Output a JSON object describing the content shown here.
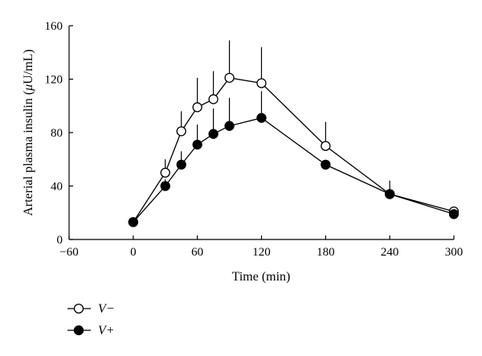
{
  "chart_data": {
    "type": "line",
    "xlabel": "Time (min)",
    "ylabel_main": "Arterial plasma insulin (",
    "ylabel_mu": "μ",
    "ylabel_unit": "U/mL)",
    "xlim": [
      -60,
      300
    ],
    "ylim": [
      0,
      160
    ],
    "x_ticks": [
      -60,
      0,
      60,
      120,
      180,
      240,
      300
    ],
    "y_ticks": [
      0,
      40,
      80,
      120,
      160
    ],
    "x_tick_labels": [
      "−60",
      "0",
      "60",
      "120",
      "180",
      "240",
      "300"
    ],
    "y_tick_labels": [
      "0",
      "40",
      "80",
      "120",
      "160"
    ],
    "grid": false,
    "legend_position": "bottom-left",
    "series": [
      {
        "name": "V−",
        "marker": "open-circle",
        "x": [
          0,
          30,
          45,
          60,
          75,
          90,
          120,
          180,
          240,
          300
        ],
        "y": [
          13,
          50,
          81,
          99,
          105,
          121,
          117,
          70,
          34,
          21
        ],
        "error_upper": [
          0,
          60,
          96,
          121,
          126,
          149,
          144,
          88,
          44,
          23
        ]
      },
      {
        "name": "V+",
        "marker": "filled-circle",
        "x": [
          0,
          30,
          45,
          60,
          75,
          90,
          120,
          180,
          240,
          300
        ],
        "y": [
          13,
          40,
          56,
          71,
          79,
          85,
          91,
          56,
          34,
          19
        ],
        "error_upper": [
          0,
          45,
          66,
          86,
          98,
          106,
          111,
          57,
          35,
          20
        ]
      }
    ]
  }
}
